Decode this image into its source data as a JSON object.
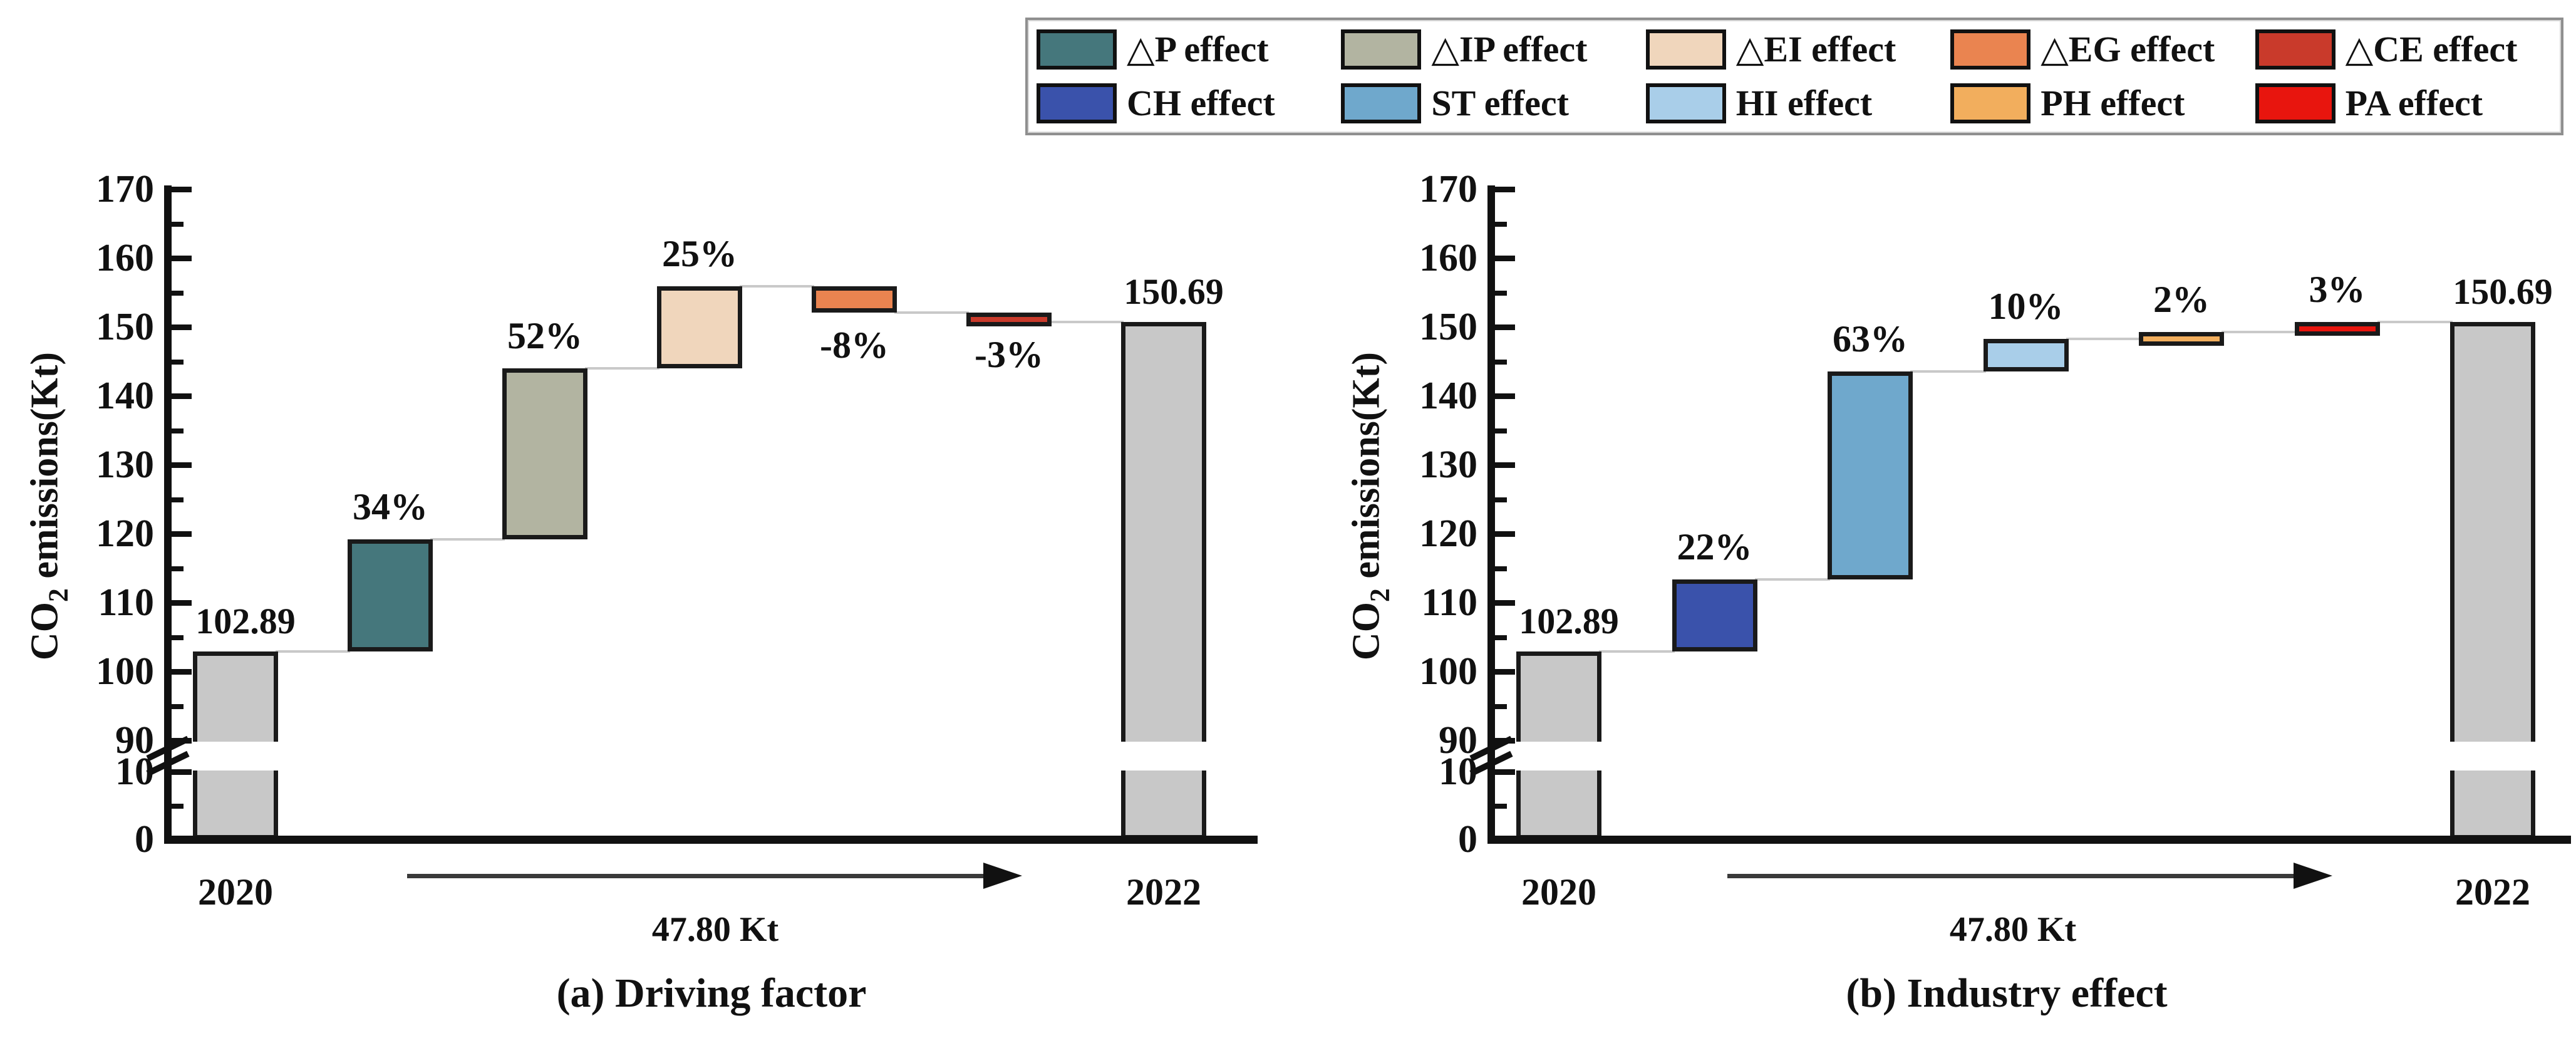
{
  "figure": {
    "background": "#ffffff"
  },
  "legend": {
    "items": [
      {
        "label": "△P effect",
        "color": "#45777c"
      },
      {
        "label": "△IP effect",
        "color": "#b2b4a1"
      },
      {
        "label": "△EI effect",
        "color": "#f0d6bc"
      },
      {
        "label": "△EG effect",
        "color": "#ea8450"
      },
      {
        "label": "△CE effect",
        "color": "#c93a2b"
      },
      {
        "label": "CH effect",
        "color": "#3a52ab"
      },
      {
        "label": "ST effect",
        "color": "#6fa8cc"
      },
      {
        "label": "HI effect",
        "color": "#a9cee9"
      },
      {
        "label": "PH effect",
        "color": "#f2ae5d"
      },
      {
        "label": "PA effect",
        "color": "#e8150e"
      }
    ]
  },
  "colors": {
    "total_bar": "#c8c8c8",
    "bar_border": "#1a1a1a",
    "connector": "#c9c9c9",
    "axis": "#111111",
    "legend_border": "#8f8f8f"
  },
  "chart_data": [
    {
      "type": "waterfall",
      "subtitle": "(a) Driving factor",
      "ylabel": "CO2 emissions(Kt)",
      "ylabel_parts": {
        "prefix": "CO",
        "sub": "2",
        "rest": " emissions(Kt)"
      },
      "x_start_label": "2020",
      "x_end_label": "2022",
      "start_value": 102.89,
      "end_value": 150.69,
      "start_annotation": "102.89",
      "end_annotation": "150.69",
      "total_change_kt": 47.8,
      "total_change_label": "47.80 Kt",
      "y_axis": {
        "major_ticks": [
          0,
          10,
          90,
          100,
          110,
          120,
          130,
          140,
          150,
          160,
          170
        ],
        "minor_ticks": [
          5,
          95,
          105,
          115,
          125,
          135,
          145,
          155,
          165
        ],
        "axis_break_between": [
          10,
          90
        ],
        "ylim_segments": [
          [
            0,
            10
          ],
          [
            90,
            170
          ]
        ],
        "grid": false
      },
      "steps": [
        {
          "name": "△P effect",
          "pct_of_total": 34,
          "label": "34%",
          "color": "#45777c"
        },
        {
          "name": "△IP effect",
          "pct_of_total": 52,
          "label": "52%",
          "color": "#b2b4a1"
        },
        {
          "name": "△EI effect",
          "pct_of_total": 25,
          "label": "25%",
          "color": "#f0d6bc"
        },
        {
          "name": "△EG effect",
          "pct_of_total": -8,
          "label": "-8%",
          "color": "#ea8450"
        },
        {
          "name": "△CE effect",
          "pct_of_total": -3,
          "label": "-3%",
          "color": "#c93a2b"
        }
      ]
    },
    {
      "type": "waterfall",
      "subtitle": "(b) Industry effect",
      "ylabel": "CO2 emissions(Kt)",
      "ylabel_parts": {
        "prefix": "CO",
        "sub": "2",
        "rest": " emissions(Kt)"
      },
      "x_start_label": "2020",
      "x_end_label": "2022",
      "start_value": 102.89,
      "end_value": 150.69,
      "start_annotation": "102.89",
      "end_annotation": "150.69",
      "total_change_kt": 47.8,
      "total_change_label": "47.80 Kt",
      "y_axis": {
        "major_ticks": [
          0,
          10,
          90,
          100,
          110,
          120,
          130,
          140,
          150,
          160,
          170
        ],
        "minor_ticks": [
          5,
          95,
          105,
          115,
          125,
          135,
          145,
          155,
          165
        ],
        "axis_break_between": [
          10,
          90
        ],
        "ylim_segments": [
          [
            0,
            10
          ],
          [
            90,
            170
          ]
        ],
        "grid": false
      },
      "steps": [
        {
          "name": "CH effect",
          "pct_of_total": 22,
          "label": "22%",
          "color": "#3a52ab"
        },
        {
          "name": "ST effect",
          "pct_of_total": 63,
          "label": "63%",
          "color": "#6fa8cc"
        },
        {
          "name": "HI effect",
          "pct_of_total": 10,
          "label": "10%",
          "color": "#a9cee9"
        },
        {
          "name": "PH effect",
          "pct_of_total": 2,
          "label": "2%",
          "color": "#f2ae5d"
        },
        {
          "name": "PA effect",
          "pct_of_total": 3,
          "label": "3%",
          "color": "#e8150e"
        }
      ]
    }
  ]
}
